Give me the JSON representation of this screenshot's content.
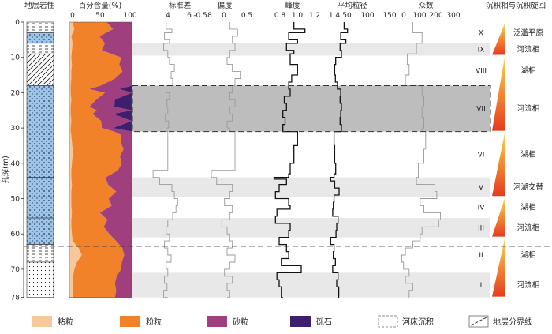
{
  "chart_data": {
    "type": "area",
    "y_axis": {
      "label": "孔深(m)",
      "ticks": [
        0,
        10,
        20,
        30,
        40,
        50,
        60,
        70,
        78
      ],
      "range": [
        0,
        78
      ]
    },
    "columns": {
      "lithology": "地层岩性",
      "grain_pct": "百分含量(%)",
      "std": "标准差",
      "skew": "偏度",
      "kurt": "峰度",
      "mean": "平均粒径",
      "mode": "众数",
      "facies": "沉积相与沉积旋回"
    },
    "x_ticks": {
      "grain_pct": [
        "0",
        "50",
        "100"
      ],
      "std": [
        "4",
        "6",
        "8"
      ],
      "skew": [
        "-0.5",
        "0",
        "0.5"
      ],
      "kurt": [
        "0.8",
        "1.0",
        "1.2",
        "1.4"
      ],
      "mean": [
        "50",
        "100",
        "150"
      ],
      "mode": [
        "0",
        "100",
        "200",
        "300"
      ]
    },
    "units": [
      {
        "label": "X",
        "top": 0,
        "bottom": 6,
        "facies": "泛滥平原",
        "shade": false
      },
      {
        "label": "IX",
        "top": 6,
        "bottom": 9.5,
        "facies": "河流相",
        "shade": true
      },
      {
        "label": "VIII",
        "top": 9.5,
        "bottom": 18,
        "facies": "湖相",
        "shade": false
      },
      {
        "label": "VII",
        "top": 18,
        "bottom": 31,
        "facies": "河流相",
        "shade": "dark"
      },
      {
        "label": "VI",
        "top": 31,
        "bottom": 44,
        "facies": "湖相",
        "shade": false
      },
      {
        "label": "V",
        "top": 44,
        "bottom": 49.5,
        "facies": "河湖交替",
        "shade": true
      },
      {
        "label": "IV",
        "top": 49.5,
        "bottom": 55.5,
        "facies": "湖相",
        "shade": false
      },
      {
        "label": "III",
        "top": 55.5,
        "bottom": 61,
        "facies": "河流相",
        "shade": true
      },
      {
        "label": "II",
        "top": 61,
        "bottom": 71,
        "facies": "湖相",
        "shade": false
      },
      {
        "label": "I",
        "top": 71,
        "bottom": 78,
        "facies": "河流相",
        "shade": true
      }
    ],
    "boundary_depth": 63.5,
    "grain_size": {
      "depths": [
        0,
        2,
        4,
        6,
        8,
        10,
        12,
        14,
        16,
        18,
        19,
        20,
        22,
        24,
        25,
        26,
        28,
        30,
        31,
        32,
        34,
        36,
        38,
        40,
        42,
        44,
        46,
        48,
        50,
        52,
        54,
        56,
        58,
        60,
        62,
        64,
        66,
        68,
        70,
        72,
        74,
        76,
        78
      ],
      "clay": [
        5,
        8,
        3,
        5,
        4,
        3,
        4,
        3,
        3,
        2,
        2,
        2,
        3,
        2,
        2,
        2,
        3,
        2,
        2,
        3,
        4,
        5,
        5,
        4,
        3,
        3,
        4,
        3,
        3,
        3,
        4,
        3,
        3,
        4,
        5,
        15,
        20,
        12,
        8,
        6,
        5,
        5,
        5
      ],
      "silt": [
        55,
        62,
        45,
        52,
        48,
        80,
        76,
        82,
        70,
        48,
        30,
        55,
        40,
        30,
        42,
        35,
        48,
        50,
        70,
        80,
        78,
        82,
        76,
        80,
        75,
        55,
        58,
        72,
        60,
        65,
        45,
        58,
        52,
        60,
        70,
        70,
        68,
        72,
        75,
        70,
        68,
        70,
        68
      ],
      "sand": [
        40,
        30,
        52,
        43,
        48,
        17,
        20,
        15,
        27,
        50,
        48,
        43,
        30,
        40,
        56,
        33,
        49,
        18,
        28,
        17,
        18,
        13,
        19,
        16,
        22,
        42,
        38,
        25,
        37,
        32,
        51,
        39,
        45,
        36,
        25,
        15,
        12,
        16,
        17,
        24,
        27,
        25,
        27
      ],
      "gravel": [
        0,
        0,
        0,
        0,
        0,
        0,
        0,
        0,
        0,
        0,
        20,
        0,
        27,
        28,
        0,
        30,
        0,
        30,
        0,
        0,
        0,
        0,
        0,
        0,
        0,
        0,
        0,
        0,
        0,
        0,
        0,
        0,
        0,
        0,
        0,
        0,
        0,
        0,
        0,
        0,
        0,
        0,
        0
      ]
    },
    "curves": {
      "std": {
        "depths": [
          0,
          2,
          3,
          5,
          6,
          8,
          10,
          12,
          14,
          16,
          18,
          20,
          22,
          24,
          26,
          28,
          30,
          31,
          40,
          42,
          44,
          46,
          48,
          50,
          52,
          54,
          56,
          58,
          60,
          62,
          64,
          66,
          68,
          70,
          72,
          74,
          76,
          78
        ],
        "values": [
          4.8,
          5.5,
          4.6,
          5.2,
          4.5,
          5.0,
          5.2,
          5.8,
          5.4,
          5.6,
          4.8,
          5.2,
          4.9,
          5.0,
          4.7,
          5.1,
          4.8,
          5.0,
          5.0,
          3.2,
          4.0,
          5.5,
          5.8,
          6.2,
          6.0,
          5.6,
          5.0,
          4.8,
          5.2,
          4.6,
          5.0,
          5.4,
          4.8,
          5.0,
          4.6,
          4.9,
          4.5,
          5.0
        ]
      },
      "skew": {
        "depths": [
          0,
          2,
          4,
          6,
          8,
          10,
          12,
          14,
          16,
          18,
          20,
          22,
          24,
          26,
          28,
          30,
          31,
          40,
          42,
          44,
          46,
          48,
          50,
          52,
          54,
          56,
          58,
          60,
          62,
          64,
          66,
          68,
          70,
          72,
          74,
          76,
          78
        ],
        "values": [
          0.1,
          0.4,
          0.2,
          0.3,
          0.1,
          0.0,
          0.2,
          0.5,
          0.3,
          0.2,
          0.1,
          0.3,
          0.1,
          0.2,
          0.0,
          0.1,
          0.3,
          0.3,
          -0.6,
          -0.4,
          0.2,
          0.1,
          -0.1,
          0.2,
          0.1,
          -0.2,
          0.0,
          0.1,
          0.2,
          0.0,
          0.3,
          0.1,
          -0.1,
          0.2,
          0.0,
          0.1,
          0.0
        ]
      },
      "kurt": {
        "depths": [
          0,
          2,
          3,
          5,
          6,
          8,
          9,
          12,
          15,
          17,
          19,
          21,
          23,
          25,
          27,
          29,
          31,
          35,
          40,
          43,
          44,
          44.5,
          46,
          48,
          50,
          52,
          53,
          55,
          57,
          59,
          61,
          63,
          65,
          67,
          69,
          71,
          73,
          75,
          78
        ],
        "values": [
          1.05,
          1.2,
          0.98,
          1.1,
          0.95,
          1.05,
          1.0,
          1.1,
          1.02,
          0.98,
          1.0,
          0.92,
          0.95,
          0.9,
          0.93,
          0.9,
          1.1,
          1.05,
          1.0,
          0.98,
          0.78,
          0.95,
          0.85,
          0.8,
          0.98,
          1.0,
          0.82,
          0.8,
          1.0,
          0.98,
          0.85,
          0.95,
          0.98,
          0.88,
          1.15,
          0.82,
          0.85,
          0.88,
          0.9
        ]
      },
      "mean": {
        "depths": [
          0,
          2,
          3,
          5,
          6,
          8,
          10,
          12,
          15,
          17,
          19,
          21,
          23,
          25,
          27,
          29,
          31,
          35,
          40,
          43,
          44,
          45,
          47,
          49,
          51,
          53,
          55,
          57,
          59,
          61,
          63,
          65,
          67,
          69,
          71,
          73,
          75,
          78
        ],
        "values": [
          70,
          80,
          60,
          75,
          58,
          62,
          45,
          42,
          44,
          50,
          60,
          58,
          62,
          60,
          58,
          62,
          40,
          42,
          45,
          40,
          30,
          42,
          55,
          40,
          38,
          36,
          52,
          48,
          46,
          30,
          40,
          38,
          44,
          36,
          52,
          48,
          54,
          55
        ]
      },
      "mode": {
        "depths": [
          0,
          3,
          6,
          9,
          12,
          15,
          18,
          21,
          24,
          27,
          30,
          31,
          36,
          40,
          44,
          46,
          48,
          50,
          52,
          54,
          56,
          58,
          60,
          62,
          64,
          66,
          68,
          70,
          72,
          74,
          76,
          78
        ],
        "values": [
          100,
          150,
          120,
          70,
          80,
          60,
          150,
          160,
          150,
          160,
          150,
          170,
          160,
          130,
          120,
          220,
          230,
          140,
          160,
          250,
          240,
          150,
          140,
          100,
          60,
          40,
          50,
          80,
          60,
          100,
          80,
          80
        ]
      }
    },
    "legend": [
      {
        "label": "粘粒",
        "color": "#f7c99a"
      },
      {
        "label": "粉粒",
        "color": "#f2822a"
      },
      {
        "label": "砂粒",
        "color": "#a03f7e"
      },
      {
        "label": "砾石",
        "color": "#3d1f6d"
      },
      {
        "label": "河床沉积",
        "color": "#ffffff"
      },
      {
        "label": "地层分界线",
        "color": "#444444"
      }
    ]
  }
}
